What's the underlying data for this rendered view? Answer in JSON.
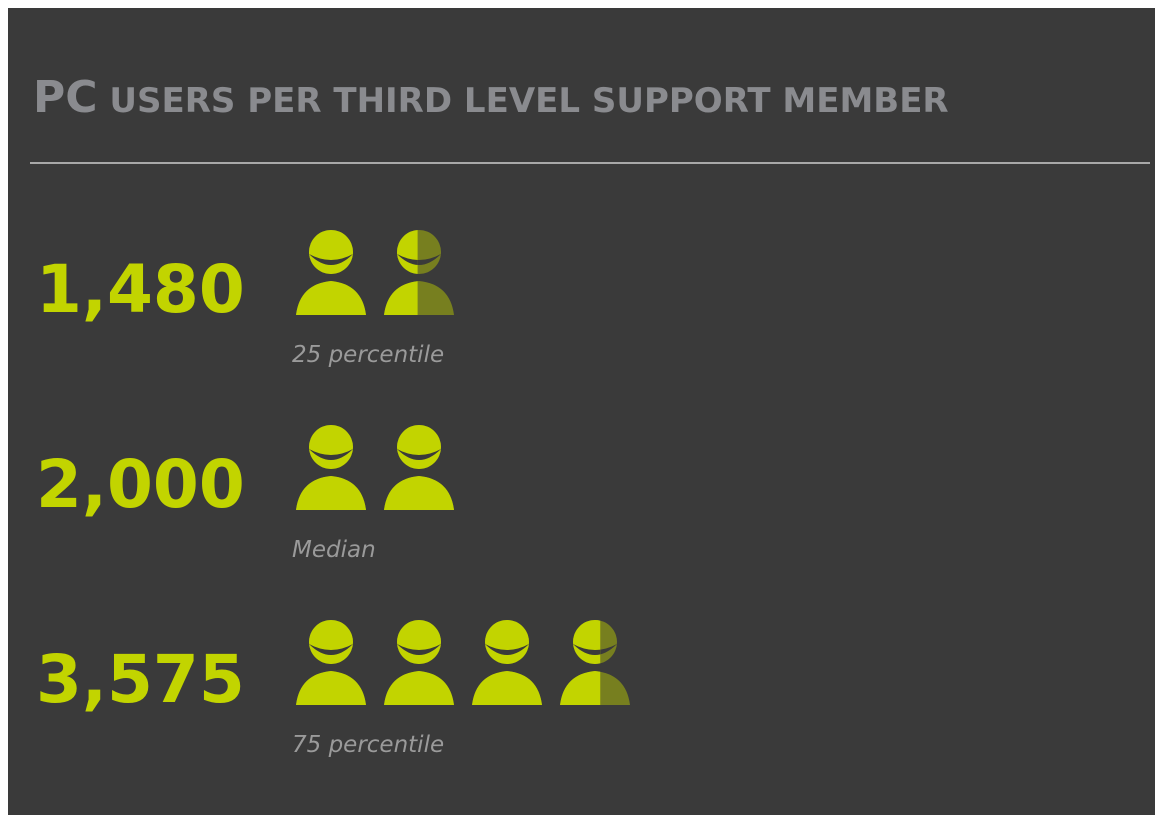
{
  "chart_data": {
    "type": "pictogram",
    "title": "PC USERS PER THIRD LEVEL SUPPORT MEMBER",
    "categories": [
      "25 percentile",
      "Median",
      "75 percentile"
    ],
    "values": [
      1480,
      2000,
      3575
    ],
    "value_labels": [
      "1,480",
      "2,000",
      "3,575"
    ],
    "color": "#c2d400"
  }
}
